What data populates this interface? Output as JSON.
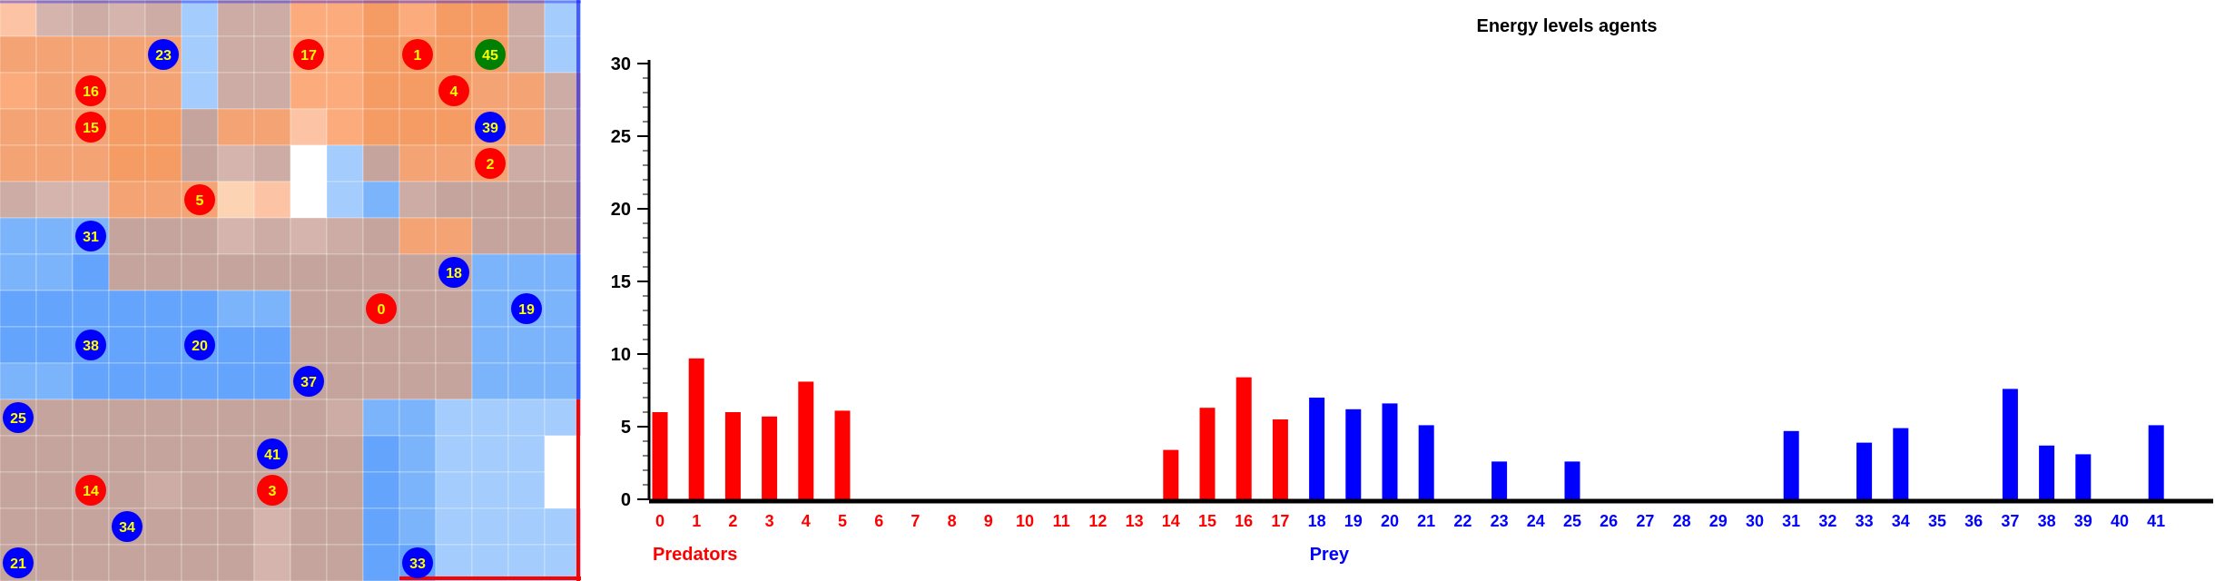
{
  "grid": {
    "rows": 16,
    "cols": 16,
    "colors": [
      [
        "#fcc4a4",
        "#d4b4ac",
        "#ccaca4",
        "#d4b4ac",
        "#ccaca4",
        "#a4ccfc",
        "#ccaca4",
        "#ccaca4",
        "#fcac7c",
        "#fcac7c",
        "#f49c64",
        "#fcac7c",
        "#f49c64",
        "#f49c64",
        "#ccaca4",
        "#a4ccfc"
      ],
      [
        "#f4a474",
        "#f4a474",
        "#f4a474",
        "#f4a474",
        "#f4a474",
        "#a4ccfc",
        "#ccaca4",
        "#ccaca4",
        "#fcac7c",
        "#fcac7c",
        "#f49c64",
        "#f49c64",
        "#f49c64",
        "#f49c64",
        "#ccaca4",
        "#a4ccfc"
      ],
      [
        "#fcac7c",
        "#f4a474",
        "#f4a474",
        "#f4a474",
        "#f4a474",
        "#a4ccfc",
        "#ccaca4",
        "#ccaca4",
        "#fcac7c",
        "#fcac7c",
        "#f49c64",
        "#f49c64",
        "#f49c64",
        "#f4a474",
        "#f4a474",
        "#ccaca4"
      ],
      [
        "#f4a474",
        "#f4a474",
        "#f4a474",
        "#f49c64",
        "#f49c64",
        "#c4a49c",
        "#f4a474",
        "#f4a474",
        "#fcc4a4",
        "#fcac7c",
        "#f49c64",
        "#f49c64",
        "#f49c64",
        "#f4a474",
        "#f4a474",
        "#ccaca4"
      ],
      [
        "#f4a474",
        "#f4a474",
        "#f4a474",
        "#f49c64",
        "#f49c64",
        "#c4a49c",
        "#d4b4ac",
        "#ccaca4",
        "#ffffff",
        "#a4ccfc",
        "#c4a49c",
        "#f4a474",
        "#f4a474",
        "#f4a474",
        "#ccaca4",
        "#ccaca4"
      ],
      [
        "#ccaca4",
        "#d4b4ac",
        "#d4b4ac",
        "#f4a474",
        "#f4a474",
        "#f4a474",
        "#fcd4b4",
        "#fcc4a4",
        "#ffffff",
        "#a4ccfc",
        "#7cb4fc",
        "#ccaca4",
        "#c4a49c",
        "#c4a49c",
        "#c4a49c",
        "#c4a49c"
      ],
      [
        "#7cb4fc",
        "#7cb4fc",
        "#7cb4fc",
        "#c4a49c",
        "#c4a49c",
        "#c4a49c",
        "#d4b4ac",
        "#ccaca4",
        "#d4b4ac",
        "#ccaca4",
        "#c4a49c",
        "#f4a474",
        "#f4a474",
        "#c4a49c",
        "#c4a49c",
        "#c4a49c"
      ],
      [
        "#7cb4fc",
        "#7cb4fc",
        "#64a4fc",
        "#c4a49c",
        "#c4a49c",
        "#c4a49c",
        "#c4a49c",
        "#c4a49c",
        "#c4a49c",
        "#c4a49c",
        "#c4a49c",
        "#c4a49c",
        "#c4a49c",
        "#7cb4fc",
        "#7cb4fc",
        "#7cb4fc"
      ],
      [
        "#64a4fc",
        "#64a4fc",
        "#64a4fc",
        "#64a4fc",
        "#64a4fc",
        "#64a4fc",
        "#7cb4fc",
        "#7cb4fc",
        "#c4a49c",
        "#c4a49c",
        "#c4a49c",
        "#c4a49c",
        "#c4a49c",
        "#7cb4fc",
        "#7cb4fc",
        "#7cb4fc"
      ],
      [
        "#64a4fc",
        "#64a4fc",
        "#64a4fc",
        "#64a4fc",
        "#64a4fc",
        "#64a4fc",
        "#64a4fc",
        "#64a4fc",
        "#c4a49c",
        "#c4a49c",
        "#c4a49c",
        "#c4a49c",
        "#c4a49c",
        "#7cb4fc",
        "#7cb4fc",
        "#7cb4fc"
      ],
      [
        "#7cb4fc",
        "#7cb4fc",
        "#64a4fc",
        "#64a4fc",
        "#64a4fc",
        "#64a4fc",
        "#64a4fc",
        "#64a4fc",
        "#c4a49c",
        "#c4a49c",
        "#c4a49c",
        "#c4a49c",
        "#c4a49c",
        "#7cb4fc",
        "#7cb4fc",
        "#7cb4fc"
      ],
      [
        "#c4a49c",
        "#c4a49c",
        "#c4a49c",
        "#c4a49c",
        "#c4a49c",
        "#c4a49c",
        "#c4a49c",
        "#c4a49c",
        "#c4a49c",
        "#ccaca4",
        "#7cb4fc",
        "#7cb4fc",
        "#a4ccfc",
        "#a4ccfc",
        "#a4ccfc",
        "#a4ccfc"
      ],
      [
        "#c4a49c",
        "#c4a49c",
        "#c4a49c",
        "#c4a49c",
        "#c4a49c",
        "#c4a49c",
        "#c4a49c",
        "#c4a49c",
        "#c4a49c",
        "#c4a49c",
        "#64a4fc",
        "#7cb4fc",
        "#a4ccfc",
        "#a4ccfc",
        "#a4ccfc",
        "#ffffff"
      ],
      [
        "#c4a49c",
        "#c4a49c",
        "#c4a49c",
        "#c4a49c",
        "#ccaca4",
        "#c4a49c",
        "#c4a49c",
        "#c4a49c",
        "#c4a49c",
        "#c4a49c",
        "#64a4fc",
        "#7cb4fc",
        "#a4ccfc",
        "#a4ccfc",
        "#a4ccfc",
        "#ffffff"
      ],
      [
        "#c4a49c",
        "#c4a49c",
        "#c4a49c",
        "#c4a49c",
        "#c4a49c",
        "#c4a49c",
        "#c4a49c",
        "#d4b4ac",
        "#c4a49c",
        "#c4a49c",
        "#64a4fc",
        "#7cb4fc",
        "#a4ccfc",
        "#a4ccfc",
        "#a4ccfc",
        "#a4ccfc"
      ],
      [
        "#c4a49c",
        "#c4a49c",
        "#c4a49c",
        "#c4a49c",
        "#c4a49c",
        "#c4a49c",
        "#c4a49c",
        "#d4b4ac",
        "#c4a49c",
        "#c4a49c",
        "#64a4fc",
        "#64a4fc",
        "#a4ccfc",
        "#a4ccfc",
        "#a4ccfc",
        "#a4ccfc"
      ]
    ],
    "agents": [
      {
        "id": 23,
        "kind": "prey",
        "row": 1,
        "col": 4
      },
      {
        "id": 17,
        "kind": "predator",
        "row": 1,
        "col": 8
      },
      {
        "id": 1,
        "kind": "predator",
        "row": 1,
        "col": 11
      },
      {
        "id": 45,
        "kind": "special",
        "row": 1,
        "col": 13
      },
      {
        "id": 16,
        "kind": "predator",
        "row": 2,
        "col": 2
      },
      {
        "id": 4,
        "kind": "predator",
        "row": 2,
        "col": 12
      },
      {
        "id": 15,
        "kind": "predator",
        "row": 3,
        "col": 2
      },
      {
        "id": 39,
        "kind": "prey",
        "row": 3,
        "col": 13
      },
      {
        "id": 2,
        "kind": "predator",
        "row": 4,
        "col": 13
      },
      {
        "id": 5,
        "kind": "predator",
        "row": 5,
        "col": 5
      },
      {
        "id": 31,
        "kind": "prey",
        "row": 6,
        "col": 2
      },
      {
        "id": 18,
        "kind": "prey",
        "row": 7,
        "col": 12
      },
      {
        "id": 0,
        "kind": "predator",
        "row": 8,
        "col": 10
      },
      {
        "id": 19,
        "kind": "prey",
        "row": 8,
        "col": 14
      },
      {
        "id": 38,
        "kind": "prey",
        "row": 9,
        "col": 2
      },
      {
        "id": 20,
        "kind": "prey",
        "row": 9,
        "col": 5
      },
      {
        "id": 37,
        "kind": "prey",
        "row": 10,
        "col": 8
      },
      {
        "id": 25,
        "kind": "prey",
        "row": 11,
        "col": 0
      },
      {
        "id": 41,
        "kind": "prey",
        "row": 12,
        "col": 7
      },
      {
        "id": 14,
        "kind": "predator",
        "row": 13,
        "col": 2
      },
      {
        "id": 3,
        "kind": "predator",
        "row": 13,
        "col": 7
      },
      {
        "id": 34,
        "kind": "prey",
        "row": 14,
        "col": 3
      },
      {
        "id": 21,
        "kind": "prey",
        "row": 15,
        "col": 0
      },
      {
        "id": 33,
        "kind": "prey",
        "row": 15,
        "col": 11
      }
    ],
    "agent_colors": {
      "predator": "#ff0000",
      "prey": "#0000ff",
      "special": "#008000"
    },
    "agent_text_color": "#ffff00",
    "border_colors": {
      "predator": "#ff0000",
      "prey": "#0000ff"
    }
  },
  "chart_data": {
    "type": "bar",
    "title": "Energy levels agents",
    "xlabel": "",
    "ylabel": "",
    "ylim": [
      0,
      30
    ],
    "yticks": [
      0,
      5,
      10,
      15,
      20,
      25,
      30
    ],
    "grid": false,
    "categories": [
      "0",
      "1",
      "2",
      "3",
      "4",
      "5",
      "6",
      "7",
      "8",
      "9",
      "10",
      "11",
      "12",
      "13",
      "14",
      "15",
      "16",
      "17",
      "18",
      "19",
      "20",
      "21",
      "22",
      "23",
      "24",
      "25",
      "26",
      "27",
      "28",
      "29",
      "30",
      "31",
      "32",
      "33",
      "34",
      "35",
      "36",
      "37",
      "38",
      "39",
      "40",
      "41"
    ],
    "values": [
      6,
      9.7,
      6,
      5.7,
      8.1,
      6.1,
      0,
      0,
      0,
      0,
      0,
      0,
      0,
      0,
      3.4,
      6.3,
      8.4,
      5.5,
      7,
      6.2,
      6.6,
      5.1,
      0,
      2.6,
      0,
      2.6,
      0,
      0,
      0,
      0,
      0,
      4.7,
      0,
      3.9,
      4.9,
      0,
      0,
      7.6,
      3.7,
      3.1,
      0,
      5.1
    ],
    "series": [
      {
        "name": "Predators",
        "indices": [
          0,
          17
        ],
        "color": "#ff0000"
      },
      {
        "name": "Prey",
        "indices": [
          18,
          41
        ],
        "color": "#0000ff"
      }
    ],
    "legend": "below x-axis"
  }
}
